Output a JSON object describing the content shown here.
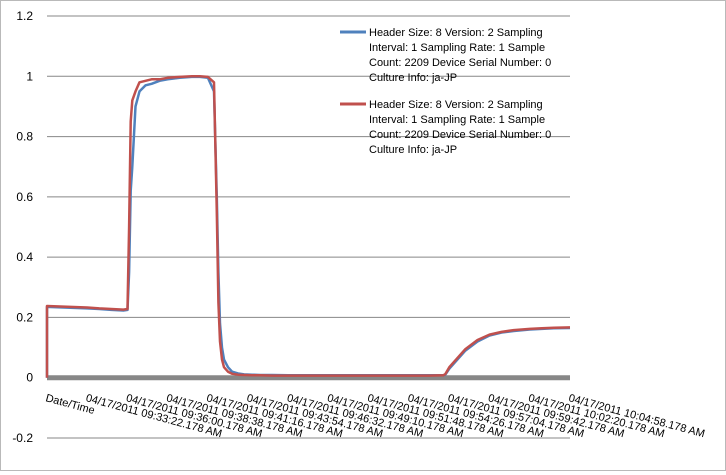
{
  "chart_data": {
    "type": "line",
    "title": "",
    "xlabel": "",
    "ylabel": "",
    "ylim": [
      -0.2,
      1.2
    ],
    "yticks": [
      -0.2,
      0,
      0.2,
      0.4,
      0.6,
      0.8,
      1,
      1.2
    ],
    "ytick_labels": [
      "-0.2",
      "0",
      "0.2",
      "0.4",
      "0.6",
      "0.8",
      "1",
      "1.2"
    ],
    "grid": true,
    "legend_position": "top-right",
    "x_categories": [
      "Date/Time",
      "04/17/2011 09:33:22.178 AM",
      "04/17/2011 09:36:00.178 AM",
      "04/17/2011 09:38:38.178 AM",
      "04/17/2011 09:41:16.178 AM",
      "04/17/2011 09:43:54.178 AM",
      "04/17/2011 09:46:32.178 AM",
      "04/17/2011 09:49:10.178 AM",
      "04/17/2011 09:51:48.178 AM",
      "04/17/2011 09:54:26.178 AM",
      "04/17/2011 09:57:04.178 AM",
      "04/17/2011 09:59:42.178 AM",
      "04/17/2011 10:02:20.178 AM",
      "04/17/2011 10:04:58.178 AM"
    ],
    "x": [
      0,
      1,
      1.3,
      1.6,
      1.9,
      2.0,
      2.04,
      2.08,
      2.12,
      2.2,
      2.3,
      2.45,
      2.6,
      2.8,
      3.0,
      3.3,
      3.6,
      3.8,
      4.0,
      4.15,
      4.22,
      4.26,
      4.3,
      4.35,
      4.4,
      4.5,
      4.6,
      4.75,
      4.9,
      5.1,
      5.3,
      5.6,
      6.0,
      6.5,
      7.0,
      7.5,
      8.0,
      8.5,
      9.0,
      9.5,
      9.85,
      9.9,
      10.0,
      10.2,
      10.4,
      10.7,
      11.0,
      11.3,
      11.6,
      12.0,
      12.3,
      12.6,
      13.0
    ],
    "series": [
      {
        "name": "Header Size:  8 Version:  2 Sampling Interval:  1 Sampling  Rate:  1 Sample Count:  2209 Device Serial Number:  0 Culture Info:  ja-JP",
        "color": "#4f81bd",
        "values": [
          0.235,
          0.23,
          0.228,
          0.225,
          0.223,
          0.225,
          0.35,
          0.62,
          0.7,
          0.9,
          0.95,
          0.97,
          0.975,
          0.985,
          0.99,
          0.995,
          0.998,
          0.998,
          0.995,
          0.95,
          0.6,
          0.35,
          0.18,
          0.1,
          0.06,
          0.035,
          0.02,
          0.014,
          0.011,
          0.01,
          0.009,
          0.009,
          0.008,
          0.008,
          0.008,
          0.008,
          0.008,
          0.008,
          0.008,
          0.008,
          0.008,
          0.01,
          0.03,
          0.06,
          0.09,
          0.12,
          0.14,
          0.15,
          0.155,
          0.16,
          0.162,
          0.164,
          0.165
        ]
      },
      {
        "name": "Header Size:  8 Version:  2 Sampling Interval:  1 Sampling  Rate:  1 Sample Count:  2209 Device Serial Number:  0 Culture Info:  ja-JP",
        "color": "#c0504d",
        "values": [
          0.238,
          0.233,
          0.23,
          0.228,
          0.226,
          0.228,
          0.5,
          0.85,
          0.92,
          0.95,
          0.98,
          0.985,
          0.99,
          0.99,
          0.995,
          0.998,
          1.0,
          1.0,
          0.998,
          0.98,
          0.55,
          0.25,
          0.12,
          0.06,
          0.035,
          0.02,
          0.013,
          0.01,
          0.009,
          0.008,
          0.008,
          0.007,
          0.007,
          0.007,
          0.007,
          0.007,
          0.007,
          0.007,
          0.007,
          0.007,
          0.008,
          0.012,
          0.035,
          0.065,
          0.095,
          0.125,
          0.143,
          0.152,
          0.158,
          0.162,
          0.164,
          0.166,
          0.167
        ]
      }
    ],
    "legend_lines": [
      [
        "Header Size:  8 Version:  2 Sampling",
        "Interval:  1 Sampling  Rate:  1 Sample",
        "Count:  2209 Device Serial Number:  0",
        "Culture Info:  ja-JP"
      ],
      [
        "Header Size:  8 Version:  2 Sampling",
        "Interval:  1 Sampling  Rate:  1 Sample",
        "Count:  2209 Device Serial Number:  0",
        "Culture Info:  ja-JP"
      ]
    ],
    "colors": {
      "gridline": "#878787",
      "zero_axis": "#878787",
      "border": "#b9b9b9"
    }
  }
}
